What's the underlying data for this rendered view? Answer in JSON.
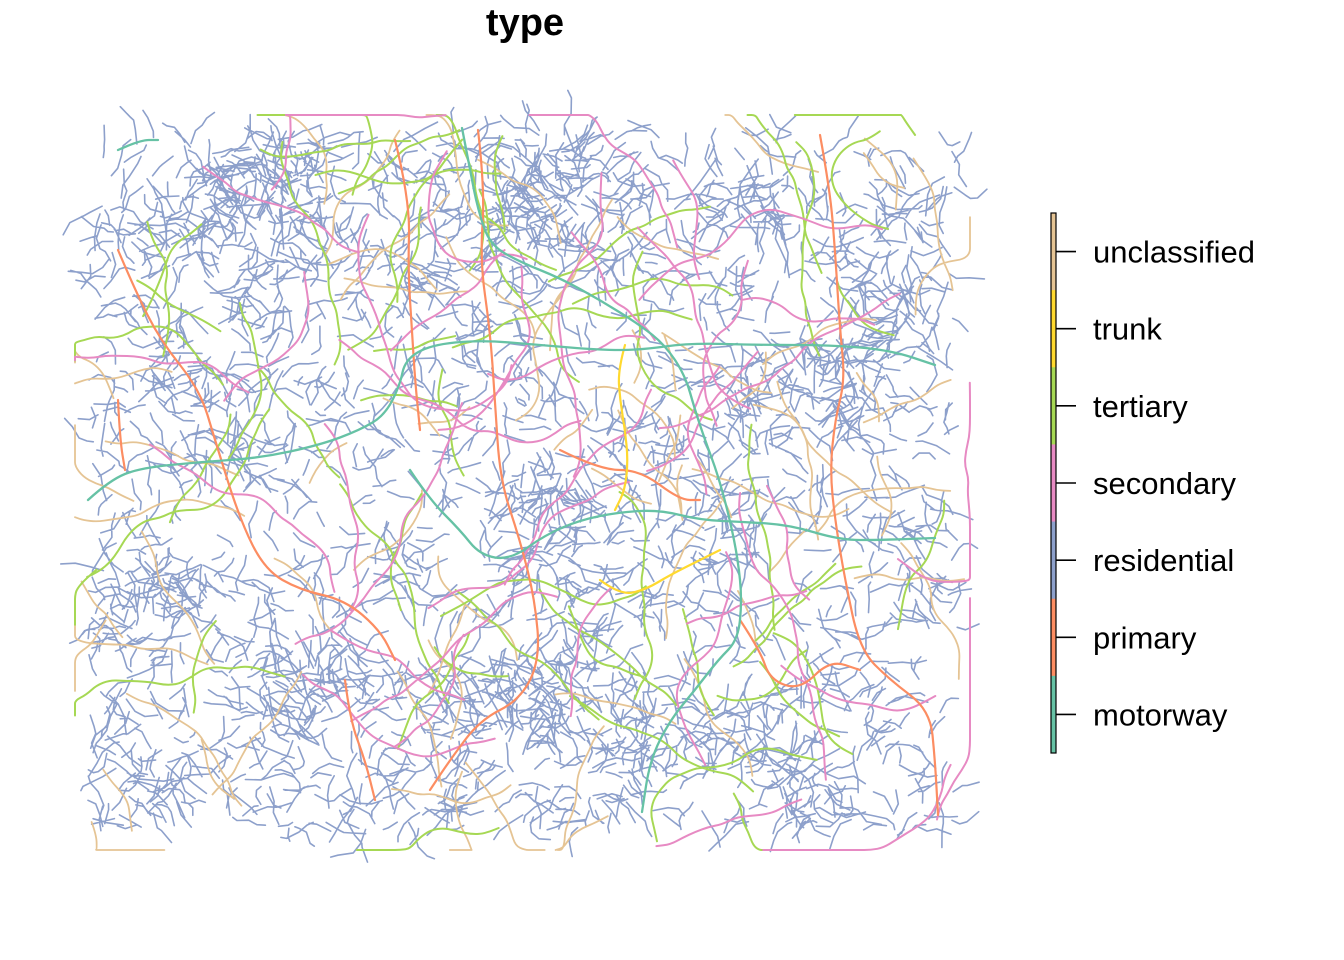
{
  "title": "type",
  "legend": {
    "items": [
      {
        "label": "unclassified",
        "color": "#E5C494"
      },
      {
        "label": "trunk",
        "color": "#FFD92F"
      },
      {
        "label": "tertiary",
        "color": "#A6D854"
      },
      {
        "label": "secondary",
        "color": "#E78AC3"
      },
      {
        "label": "residential",
        "color": "#8DA0CB"
      },
      {
        "label": "primary",
        "color": "#FC8D62"
      },
      {
        "label": "motorway",
        "color": "#66C2A5"
      }
    ]
  },
  "background": "#FFFFFF"
}
